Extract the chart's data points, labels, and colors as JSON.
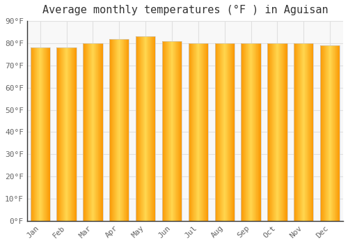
{
  "title": "Average monthly temperatures (°F ) in Aguisan",
  "months": [
    "Jan",
    "Feb",
    "Mar",
    "Apr",
    "May",
    "Jun",
    "Jul",
    "Aug",
    "Sep",
    "Oct",
    "Nov",
    "Dec"
  ],
  "values": [
    78,
    78,
    80,
    82,
    83,
    81,
    80,
    80,
    80,
    80,
    80,
    79
  ],
  "bar_color_center": "#FFB300",
  "bar_color_edge": "#F57F17",
  "background_color": "#FFFFFF",
  "plot_bg_color": "#F8F8F8",
  "grid_color": "#E0E0E0",
  "ylim": [
    0,
    90
  ],
  "yticks": [
    0,
    10,
    20,
    30,
    40,
    50,
    60,
    70,
    80,
    90
  ],
  "ylabel_suffix": "°F",
  "title_fontsize": 11,
  "tick_fontsize": 8,
  "bar_width": 0.75
}
